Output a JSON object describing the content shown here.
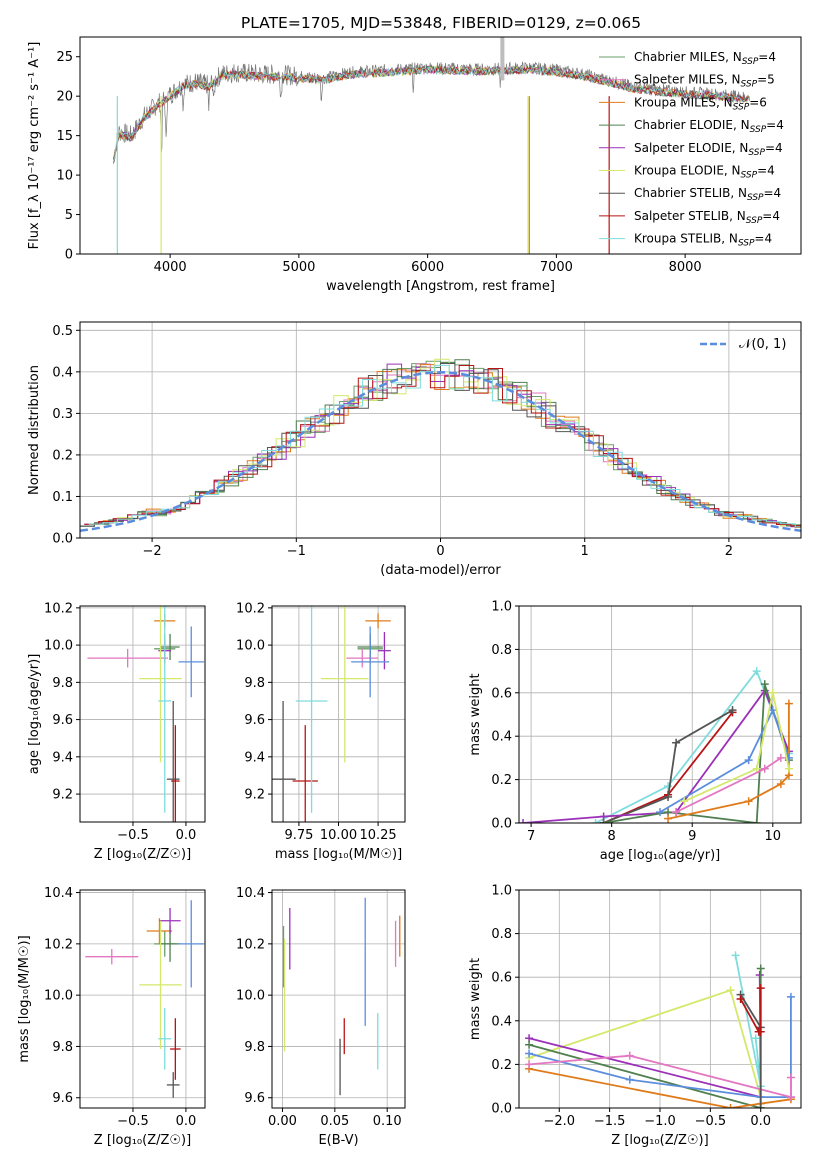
{
  "figure_title": "PLATE=1705, MJD=53848, FIBERID=0129, z=0.065",
  "colors": {
    "Chabrier MILES": "#6a9f6a",
    "Salpeter MILES": "#e377c2",
    "Kroupa MILES": "#e07b1a",
    "Chabrier ELODIE": "#4f7f4f",
    "Salpeter ELODIE": "#9b30b8",
    "Kroupa ELODIE": "#d4e86a",
    "Chabrier STELIB": "#555555",
    "Salpeter STELIB": "#b81414",
    "Kroupa STELIB": "#7fdcdc",
    "blue": "#5b8dde"
  },
  "chart_data": [
    {
      "id": "spectrum",
      "type": "line",
      "title": "PLATE=1705, MJD=53848, FIBERID=0129, z=0.065",
      "xlabel": "wavelength [Angstrom, rest frame]",
      "ylabel": "Flux [f_λ 10⁻¹⁷ erg cm⁻² s⁻¹ A⁻¹]",
      "xlim": [
        3300,
        8900
      ],
      "ylim": [
        0,
        27.5
      ],
      "xticks": [
        4000,
        5000,
        6000,
        7000,
        8000
      ],
      "yticks": [
        0,
        5,
        10,
        15,
        20,
        25
      ],
      "grid": false,
      "legend_position": "upper right",
      "continuum": [
        [
          3560,
          12
        ],
        [
          3600,
          15.5
        ],
        [
          3700,
          15
        ],
        [
          3800,
          17.5
        ],
        [
          3900,
          19
        ],
        [
          4000,
          20.2
        ],
        [
          4100,
          21.5
        ],
        [
          4200,
          21.8
        ],
        [
          4300,
          21.4
        ],
        [
          4400,
          22.8
        ],
        [
          4500,
          23
        ],
        [
          4700,
          22.8
        ],
        [
          4900,
          22.7
        ],
        [
          5000,
          22.5
        ],
        [
          5200,
          22.3
        ],
        [
          5400,
          23
        ],
        [
          5600,
          23.2
        ],
        [
          5800,
          23.4
        ],
        [
          6000,
          23.6
        ],
        [
          6200,
          23.5
        ],
        [
          6400,
          23.4
        ],
        [
          6600,
          23.5
        ],
        [
          6800,
          23.6
        ],
        [
          7000,
          23.3
        ],
        [
          7200,
          22.8
        ],
        [
          7400,
          22
        ],
        [
          7600,
          21.2
        ],
        [
          7800,
          20.8
        ],
        [
          8000,
          20.5
        ],
        [
          8200,
          20.3
        ],
        [
          8400,
          20
        ],
        [
          8500,
          19.8
        ]
      ],
      "series": [
        {
          "name": "Chabrier MILES, N_SSP=4"
        },
        {
          "name": "Salpeter MILES, N_SSP=5"
        },
        {
          "name": "Kroupa MILES, N_SSP=6"
        },
        {
          "name": "Chabrier ELODIE, N_SSP=4"
        },
        {
          "name": "Salpeter ELODIE, N_SSP=4"
        },
        {
          "name": "Kroupa ELODIE, N_SSP=4"
        },
        {
          "name": "Chabrier STELIB, N_SSP=4"
        },
        {
          "name": "Salpeter STELIB, N_SSP=4"
        },
        {
          "name": "Kroupa STELIB, N_SSP=4"
        }
      ]
    },
    {
      "id": "residuals",
      "type": "line",
      "xlabel": "(data-model)/error",
      "ylabel": "Normed distribution",
      "xlim": [
        -2.5,
        2.5
      ],
      "ylim": [
        0,
        0.52
      ],
      "xticks": [
        -2,
        -1,
        0,
        1,
        2
      ],
      "yticks": [
        0.0,
        0.1,
        0.2,
        0.3,
        0.4,
        0.5
      ],
      "grid": true,
      "legend": "𝒩(0, 1)",
      "legend_position": "upper right"
    },
    {
      "id": "age-vs-Z",
      "type": "scatter",
      "xlabel": "Z [log₁₀(Z/Z☉)]",
      "ylabel": "age  [log₁₀(age/yr)]",
      "xlim": [
        -1.0,
        0.18
      ],
      "ylim": [
        9.05,
        10.21
      ],
      "xticks": [
        -0.5,
        0.0
      ],
      "yticks": [
        9.2,
        9.4,
        9.6,
        9.8,
        10.0,
        10.2
      ],
      "grid": true,
      "points": [
        {
          "c": "Chabrier MILES",
          "x": -0.2,
          "y": 9.98,
          "xerr": 0.1,
          "yerr": 0.08
        },
        {
          "c": "Salpeter MILES",
          "x": -0.55,
          "y": 9.93,
          "xerr": 0.38,
          "yerr": 0.05
        },
        {
          "c": "Kroupa MILES",
          "x": -0.2,
          "y": 10.13,
          "xerr": 0.1,
          "yerr": 0.04
        },
        {
          "c": "Chabrier ELODIE",
          "x": -0.15,
          "y": 9.99,
          "xerr": 0.09,
          "yerr": 0.07
        },
        {
          "c": "Salpeter ELODIE",
          "x": -0.2,
          "y": 9.97,
          "xerr": 0.06,
          "yerr": 0.06
        },
        {
          "c": "Kroupa ELODIE",
          "x": -0.24,
          "y": 9.82,
          "xerr": 0.2,
          "yerr": 0.45
        },
        {
          "c": "Chabrier STELIB",
          "x": -0.12,
          "y": 9.28,
          "xerr": 0.06,
          "yerr": 0.42
        },
        {
          "c": "Salpeter STELIB",
          "x": -0.1,
          "y": 9.27,
          "xerr": 0.04,
          "yerr": 0.3
        },
        {
          "c": "Kroupa STELIB",
          "x": -0.2,
          "y": 9.7,
          "xerr": 0.06,
          "yerr": 0.6
        },
        {
          "c": "blue",
          "x": 0.05,
          "y": 9.91,
          "xerr": 0.12,
          "yerr": 0.19
        }
      ]
    },
    {
      "id": "age-vs-mass",
      "type": "scatter",
      "xlabel": "mass [log₁₀(M/M☉)]",
      "ylabel": "",
      "xlim": [
        9.58,
        10.42
      ],
      "ylim": [
        9.05,
        10.21
      ],
      "xticks": [
        9.75,
        10.0,
        10.25
      ],
      "tick_labels": [
        "9.75",
        "10.00",
        "10.25"
      ],
      "yticks": [
        9.2,
        9.4,
        9.6,
        9.8,
        10.0,
        10.2
      ],
      "grid": true,
      "points": [
        {
          "c": "Chabrier MILES",
          "x": 10.2,
          "y": 9.98,
          "xerr": 0.08,
          "yerr": 0.08
        },
        {
          "c": "Salpeter MILES",
          "x": 10.15,
          "y": 9.93,
          "xerr": 0.1,
          "yerr": 0.05
        },
        {
          "c": "Kroupa MILES",
          "x": 10.25,
          "y": 10.13,
          "xerr": 0.08,
          "yerr": 0.04
        },
        {
          "c": "Chabrier ELODIE",
          "x": 10.2,
          "y": 9.99,
          "xerr": 0.08,
          "yerr": 0.07
        },
        {
          "c": "Salpeter ELODIE",
          "x": 10.29,
          "y": 9.97,
          "xerr": 0.04,
          "yerr": 0.1
        },
        {
          "c": "Kroupa ELODIE",
          "x": 10.04,
          "y": 9.82,
          "xerr": 0.15,
          "yerr": 0.45
        },
        {
          "c": "Chabrier STELIB",
          "x": 9.65,
          "y": 9.28,
          "xerr": 0.08,
          "yerr": 0.42
        },
        {
          "c": "Salpeter STELIB",
          "x": 9.79,
          "y": 9.27,
          "xerr": 0.08,
          "yerr": 0.3
        },
        {
          "c": "Kroupa STELIB",
          "x": 9.83,
          "y": 9.7,
          "xerr": 0.1,
          "yerr": 0.6
        },
        {
          "c": "blue",
          "x": 10.2,
          "y": 9.91,
          "xerr": 0.12,
          "yerr": 0.19
        }
      ]
    },
    {
      "id": "mass-weight-vs-age",
      "type": "line",
      "xlabel": "age  [log₁₀(age/yr)]",
      "ylabel": "mass weight",
      "xlim": [
        6.85,
        10.35
      ],
      "ylim": [
        0,
        1.0
      ],
      "xticks": [
        7,
        8,
        9,
        10
      ],
      "yticks": [
        0.0,
        0.2,
        0.4,
        0.6,
        0.8,
        1.0
      ],
      "grid": true,
      "series": [
        {
          "c": "Kroupa STELIB",
          "x": [
            7.8,
            8.7,
            9.8,
            10.2
          ],
          "y": [
            0.0,
            0.17,
            0.7,
            0.32
          ]
        },
        {
          "c": "Salpeter STELIB",
          "x": [
            7.9,
            8.7,
            9.5
          ],
          "y": [
            0.0,
            0.13,
            0.51
          ]
        },
        {
          "c": "Chabrier STELIB",
          "x": [
            7.9,
            8.7,
            8.8,
            9.5
          ],
          "y": [
            0.0,
            0.12,
            0.37,
            0.52
          ]
        },
        {
          "c": "Salpeter ELODIE",
          "x": [
            6.9,
            7.9,
            8.8,
            9.9,
            10.2
          ],
          "y": [
            0.0,
            0.03,
            0.05,
            0.61,
            0.33
          ]
        },
        {
          "c": "Chabrier ELODIE",
          "x": [
            7.9,
            8.7,
            9.8,
            9.9,
            10.2
          ],
          "y": [
            0.0,
            0.05,
            0.0,
            0.64,
            0.29
          ]
        },
        {
          "c": "Kroupa MILES",
          "x": [
            8.7,
            9.7,
            10.1,
            10.2,
            10.2
          ],
          "y": [
            0.02,
            0.1,
            0.18,
            0.22,
            0.55
          ]
        },
        {
          "c": "blue",
          "x": [
            8.6,
            9.7,
            10.0,
            10.2
          ],
          "y": [
            0.05,
            0.29,
            0.52,
            0.3
          ]
        },
        {
          "c": "Kroupa ELODIE",
          "x": [
            8.9,
            9.8,
            10.0,
            10.2
          ],
          "y": [
            0.1,
            0.25,
            0.6,
            0.25
          ]
        },
        {
          "c": "Salpeter MILES",
          "x": [
            8.8,
            9.9,
            10.1
          ],
          "y": [
            0.05,
            0.25,
            0.3
          ]
        }
      ]
    },
    {
      "id": "mass-vs-Z",
      "type": "scatter",
      "xlabel": "Z [log₁₀(Z/Z☉)]",
      "ylabel": "mass [log₁₀(M/M☉)]",
      "xlim": [
        -1.0,
        0.18
      ],
      "ylim": [
        9.56,
        10.41
      ],
      "xticks": [
        -0.5,
        0.0
      ],
      "yticks": [
        9.6,
        9.8,
        10.0,
        10.2,
        10.4
      ],
      "grid": true,
      "points": [
        {
          "c": "Chabrier MILES",
          "x": -0.2,
          "y": 10.2,
          "xerr": 0.1,
          "yerr": 0.05
        },
        {
          "c": "Salpeter MILES",
          "x": -0.7,
          "y": 10.15,
          "xerr": 0.25,
          "yerr": 0.03
        },
        {
          "c": "Kroupa MILES",
          "x": -0.25,
          "y": 10.25,
          "xerr": 0.12,
          "yerr": 0.05
        },
        {
          "c": "Chabrier ELODIE",
          "x": -0.15,
          "y": 10.2,
          "xerr": 0.1,
          "yerr": 0.07
        },
        {
          "c": "Salpeter ELODIE",
          "x": -0.15,
          "y": 10.29,
          "xerr": 0.1,
          "yerr": 0.05
        },
        {
          "c": "Kroupa ELODIE",
          "x": -0.24,
          "y": 10.04,
          "xerr": 0.2,
          "yerr": 0.25
        },
        {
          "c": "Chabrier STELIB",
          "x": -0.12,
          "y": 9.65,
          "xerr": 0.06,
          "yerr": 0.05
        },
        {
          "c": "Salpeter STELIB",
          "x": -0.1,
          "y": 9.79,
          "xerr": 0.05,
          "yerr": 0.12
        },
        {
          "c": "Kroupa STELIB",
          "x": -0.2,
          "y": 9.83,
          "xerr": 0.06,
          "yerr": 0.12
        },
        {
          "c": "blue",
          "x": 0.05,
          "y": 10.2,
          "xerr": 0.12,
          "yerr": 0.17
        }
      ]
    },
    {
      "id": "mass-vs-EBV",
      "type": "scatter",
      "xlabel": "E(B-V)",
      "ylabel": "",
      "xlim": [
        -0.01,
        0.117
      ],
      "ylim": [
        9.56,
        10.41
      ],
      "xticks": [
        0.0,
        0.05,
        0.1
      ],
      "tick_labels": [
        "0.00",
        "0.05",
        "0.10"
      ],
      "yticks": [
        9.6,
        9.8,
        10.0,
        10.2,
        10.4
      ],
      "grid": true,
      "points": [
        {
          "c": "Chabrier MILES",
          "x": 0.001,
          "y": 10.15,
          "xerr": 0.0,
          "yerr": 0.12
        },
        {
          "c": "Kroupa ELODIE",
          "x": 0.002,
          "y": 10.0,
          "xerr": 0.0,
          "yerr": 0.22
        },
        {
          "c": "Salpeter ELODIE",
          "x": 0.007,
          "y": 10.22,
          "xerr": 0.0,
          "yerr": 0.12
        },
        {
          "c": "Chabrier STELIB",
          "x": 0.055,
          "y": 9.72,
          "xerr": 0.0,
          "yerr": 0.11
        },
        {
          "c": "Salpeter STELIB",
          "x": 0.059,
          "y": 9.84,
          "xerr": 0.0,
          "yerr": 0.07
        },
        {
          "c": "blue",
          "x": 0.079,
          "y": 10.13,
          "xerr": 0.0,
          "yerr": 0.25
        },
        {
          "c": "Kroupa STELIB",
          "x": 0.091,
          "y": 9.82,
          "xerr": 0.0,
          "yerr": 0.11
        },
        {
          "c": "Salpeter MILES",
          "x": 0.108,
          "y": 10.2,
          "xerr": 0.0,
          "yerr": 0.09
        },
        {
          "c": "Kroupa MILES",
          "x": 0.112,
          "y": 10.23,
          "xerr": 0.0,
          "yerr": 0.08
        }
      ]
    },
    {
      "id": "mass-weight-vs-Z",
      "type": "line",
      "xlabel": "Z [log₁₀(Z/Z☉)]",
      "ylabel": "mass weight",
      "xlim": [
        -2.4,
        0.4
      ],
      "ylim": [
        0,
        1.0
      ],
      "xticks": [
        -2.0,
        -1.5,
        -1.0,
        -0.5,
        0.0
      ],
      "yticks": [
        0.0,
        0.2,
        0.4,
        0.6,
        0.8,
        1.0
      ],
      "grid": true,
      "series": [
        {
          "c": "Kroupa ELODIE",
          "x": [
            -2.3,
            -0.3,
            0.0
          ],
          "y": [
            0.23,
            0.54,
            0.05
          ]
        },
        {
          "c": "Salpeter ELODIE",
          "x": [
            -2.3,
            0.0,
            -0.01
          ],
          "y": [
            0.32,
            0.05,
            0.61
          ]
        },
        {
          "c": "Chabrier ELODIE",
          "x": [
            -2.3,
            0.0,
            0.0
          ],
          "y": [
            0.29,
            0.0,
            0.64
          ]
        },
        {
          "c": "blue",
          "x": [
            -2.3,
            -1.3,
            0.0,
            0.3,
            0.3
          ],
          "y": [
            0.25,
            0.13,
            0.05,
            0.05,
            0.51
          ]
        },
        {
          "c": "Kroupa MILES",
          "x": [
            -2.3,
            -0.3,
            0.0,
            0.3
          ],
          "y": [
            0.18,
            0.0,
            0.02,
            0.04
          ]
        },
        {
          "c": "Salpeter MILES",
          "x": [
            -2.3,
            -1.3,
            0.3,
            0.3
          ],
          "y": [
            0.2,
            0.24,
            0.05,
            0.14
          ]
        },
        {
          "c": "Kroupa STELIB",
          "x": [
            -0.25,
            0.0,
            -0.05
          ],
          "y": [
            0.7,
            0.1,
            0.32
          ]
        },
        {
          "c": "Chabrier STELIB",
          "x": [
            -0.2,
            0.0,
            0.0
          ],
          "y": [
            0.52,
            0.37,
            0.0
          ]
        },
        {
          "c": "Salpeter STELIB",
          "x": [
            -0.2,
            -0.02,
            0.0,
            0.0
          ],
          "y": [
            0.5,
            0.35,
            0.35,
            0.55
          ]
        }
      ]
    }
  ]
}
